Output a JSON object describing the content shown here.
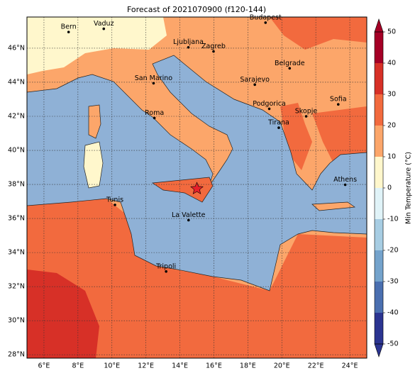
{
  "title": "Forecast of 2021070900 (f120-144)",
  "map": {
    "xlim": [
      5,
      25
    ],
    "ylim": [
      27.8,
      47.83
    ],
    "grid": true,
    "xticks": [
      {
        "value": 6,
        "label": "6°E"
      },
      {
        "value": 8,
        "label": "8°E"
      },
      {
        "value": 10,
        "label": "10°E"
      },
      {
        "value": 12,
        "label": "12°E"
      },
      {
        "value": 14,
        "label": "14°E"
      },
      {
        "value": 16,
        "label": "16°E"
      },
      {
        "value": 18,
        "label": "18°E"
      },
      {
        "value": 20,
        "label": "20°E"
      },
      {
        "value": 22,
        "label": "22°E"
      },
      {
        "value": 24,
        "label": "24°E"
      }
    ],
    "yticks": [
      {
        "value": 28,
        "label": "28°N"
      },
      {
        "value": 30,
        "label": "30°N"
      },
      {
        "value": 32,
        "label": "32°N"
      },
      {
        "value": 34,
        "label": "34°N"
      },
      {
        "value": 36,
        "label": "36°N"
      },
      {
        "value": 38,
        "label": "38°N"
      },
      {
        "value": 40,
        "label": "40°N"
      },
      {
        "value": 42,
        "label": "42°N"
      },
      {
        "value": 44,
        "label": "44°N"
      },
      {
        "value": 46,
        "label": "46°N"
      }
    ],
    "cities": [
      {
        "name": "Bern",
        "lon": 7.45,
        "lat": 46.95
      },
      {
        "name": "Vaduz",
        "lon": 9.52,
        "lat": 47.14
      },
      {
        "name": "Budapest",
        "lon": 19.04,
        "lat": 47.5
      },
      {
        "name": "Ljubljana",
        "lon": 14.5,
        "lat": 46.05
      },
      {
        "name": "Zagreb",
        "lon": 15.98,
        "lat": 45.81
      },
      {
        "name": "Belgrade",
        "lon": 20.46,
        "lat": 44.82
      },
      {
        "name": "San Marino",
        "lon": 12.45,
        "lat": 43.94
      },
      {
        "name": "Sarajevo",
        "lon": 18.41,
        "lat": 43.86
      },
      {
        "name": "Sofia",
        "lon": 23.32,
        "lat": 42.7
      },
      {
        "name": "Podgorica",
        "lon": 19.26,
        "lat": 42.44
      },
      {
        "name": "Skopje",
        "lon": 21.43,
        "lat": 42.0
      },
      {
        "name": "Roma",
        "lon": 12.5,
        "lat": 41.9
      },
      {
        "name": "Tirana",
        "lon": 19.82,
        "lat": 41.33
      },
      {
        "name": "Athens",
        "lon": 23.73,
        "lat": 37.98
      },
      {
        "name": "Tunis",
        "lon": 10.18,
        "lat": 36.8
      },
      {
        "name": "La Valette",
        "lon": 14.51,
        "lat": 35.9
      },
      {
        "name": "Tripoli",
        "lon": 13.19,
        "lat": 32.89
      }
    ],
    "marker": {
      "lon": 15.0,
      "lat": 37.75,
      "color": "#e8202a"
    }
  },
  "colorbar": {
    "label": "Min Temperature (°C)",
    "ticks": [
      -50,
      -40,
      -30,
      -20,
      -10,
      0,
      10,
      20,
      30,
      40,
      50
    ],
    "colors": [
      "#2b3491",
      "#4a6fb0",
      "#74a3cc",
      "#a7cde3",
      "#e0f3f8",
      "#fff7cc",
      "#fca66a",
      "#f26a3e",
      "#d73027",
      "#a50026"
    ]
  }
}
